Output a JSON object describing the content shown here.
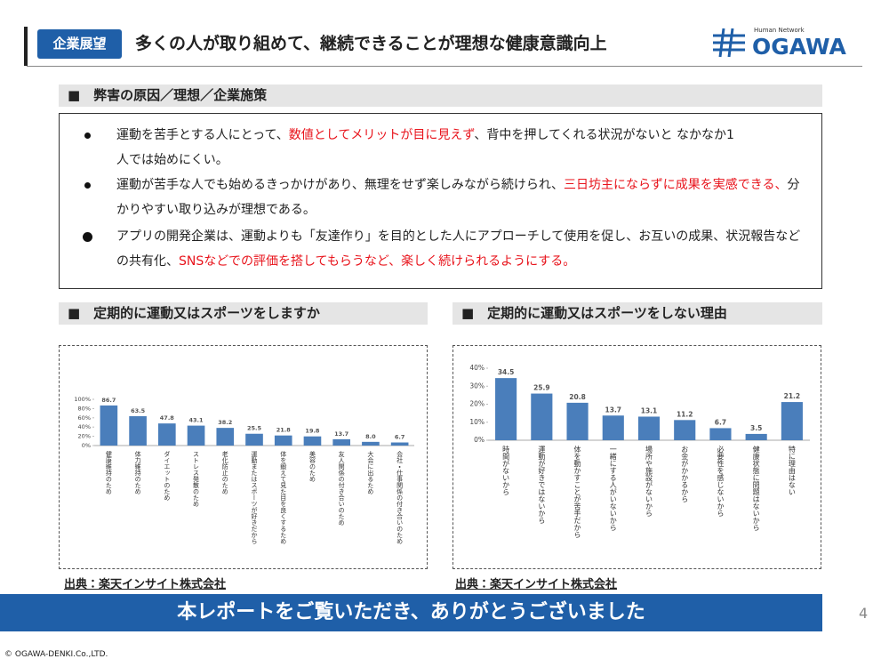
{
  "header": {
    "tag": "企業展望",
    "title": "多くの人が取り組めて、継続できることが理想な健康意識向上",
    "logo_sub": "Human Network",
    "logo": "OGAWA"
  },
  "section": {
    "heading": "■　弊害の原因／理想／企業施策",
    "bullets": [
      [
        "運動を苦手とする人にとって、",
        "数値としてメリットが目に見えず",
        "、背中を押してくれる状況がないと なかなか1人では始めにくい。"
      ],
      [
        "運動が苦手な人でも始めるきっかけがあり、無理をせず楽しみながら続けられ、",
        "三日坊主にならずに成果を実感できる、",
        "分かりやすい取り込みが理想である。"
      ],
      [
        "アプリの開発企業は、運動よりも「友達作り」を目的とした人にアプローチして使用を促し、お互いの成果、状況報告などの共有化、",
        "SNSなどでの評価を搭してもらうなど、楽しく続けられるようにする。"
      ]
    ]
  },
  "chart_headings": [
    "■　定期的に運動又はスポーツをしますか",
    "■　定期的に運動又はスポーツをしない理由"
  ],
  "chart_data": [
    {
      "type": "bar",
      "color": "#4a7ebb",
      "categories": [
        "健康維持のため",
        "体力維持のため",
        "ダイエットのため",
        "ストレス発散のため",
        "老化防止のため",
        "運動またはスポーツが好きだから",
        "体を鍛えて見た目を良くするため",
        "美容のため",
        "友人関係の付き合いのため",
        "大会に出るため",
        "会社・仕事関係の付き合いのため"
      ],
      "values": [
        86.7,
        63.5,
        47.8,
        43.1,
        38.2,
        25.5,
        21.8,
        19.8,
        13.7,
        8,
        6.7
      ],
      "value_labels": [
        "86.7",
        "63.5",
        "47.8",
        "43.1",
        "38.2",
        "25.5",
        "21.8",
        "19.8",
        "13.7",
        "8.0",
        "6.7"
      ],
      "ylim": [
        0,
        100
      ],
      "yticks": [
        {
          "value": 0,
          "label": "0%"
        },
        {
          "value": 20,
          "label": "20%"
        },
        {
          "value": 40,
          "label": "40%"
        },
        {
          "value": 60,
          "label": "60%"
        },
        {
          "value": 80,
          "label": "80%"
        },
        {
          "value": 100,
          "label": "100%"
        }
      ]
    },
    {
      "type": "bar",
      "color": "#4a7ebb",
      "categories": [
        "時間がないから",
        "運動が好きではないから",
        "体を動かすことが苦手だから",
        "一緒にする人がいないから",
        "場所や施設がないから",
        "お金がかかるから",
        "必要性を感じないから",
        "健康状態に問題はないから",
        "特に理由はない"
      ],
      "values": [
        34.5,
        25.9,
        20.8,
        13.7,
        13.1,
        11.2,
        6.7,
        3.5,
        21.2
      ],
      "ylim": [
        0,
        40
      ],
      "yticks": [
        {
          "value": 0,
          "label": "0%"
        },
        {
          "value": 10,
          "label": "10%"
        },
        {
          "value": 20,
          "label": "20%"
        },
        {
          "value": 30,
          "label": "30%"
        },
        {
          "value": 40,
          "label": "40%"
        }
      ]
    }
  ],
  "sources": [
    "出典：楽天インサイト株式会社",
    "出典：楽天インサイト株式会社"
  ],
  "banner": "本レポートをご覧いただき、ありがとうございました",
  "page_number": "4",
  "copyright": "© OGAWA-DENKI.Co.,LTD."
}
